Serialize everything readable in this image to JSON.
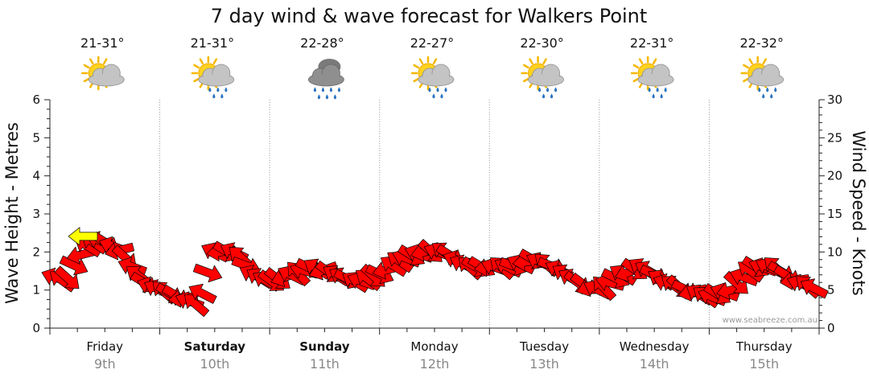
{
  "chart_data": {
    "type": "line",
    "title": "7 day wind & wave forecast for Walkers Point",
    "left_axis": {
      "label": "Wave Height - Metres",
      "ticks": [
        "0",
        "1",
        "2",
        "3",
        "4",
        "5",
        "6"
      ],
      "range": [
        0,
        6
      ]
    },
    "right_axis": {
      "label": "Wind Speed - Knots",
      "ticks": [
        "0",
        "5",
        "10",
        "15",
        "20",
        "25",
        "30"
      ],
      "range": [
        0,
        30
      ]
    },
    "days": [
      {
        "name": "Friday",
        "date": "9th",
        "temp": "21-31°",
        "icon": "partly-cloudy-icon",
        "bold": false
      },
      {
        "name": "Saturday",
        "date": "10th",
        "temp": "21-31°",
        "icon": "partly-cloudy-showers-icon",
        "bold": true
      },
      {
        "name": "Sunday",
        "date": "11th",
        "temp": "22-28°",
        "icon": "rain-icon",
        "bold": true
      },
      {
        "name": "Monday",
        "date": "12th",
        "temp": "22-27°",
        "icon": "partly-cloudy-showers-icon",
        "bold": false
      },
      {
        "name": "Tuesday",
        "date": "13th",
        "temp": "22-30°",
        "icon": "partly-cloudy-showers-icon",
        "bold": false
      },
      {
        "name": "Wednesday",
        "date": "14th",
        "temp": "22-31°",
        "icon": "partly-cloudy-showers-icon",
        "bold": false
      },
      {
        "name": "Thursday",
        "date": "15th",
        "temp": "22-32°",
        "icon": "partly-cloudy-showers-icon",
        "bold": false
      }
    ],
    "series": [
      {
        "name": "Wind Speed",
        "unit": "knots",
        "color": "#ff0000",
        "highlight_color": "#ffff00",
        "x_days": [
          0.0,
          0.15,
          0.25,
          0.35,
          0.45,
          0.55,
          0.65,
          0.75,
          0.85,
          1.0,
          1.2,
          1.35,
          1.5,
          1.7,
          1.85,
          2.0,
          2.2,
          2.4,
          2.6,
          2.8,
          3.0,
          3.2,
          3.4,
          3.6,
          3.8,
          4.0,
          4.2,
          4.4,
          4.6,
          4.8,
          5.0,
          5.2,
          5.4,
          5.6,
          5.8,
          6.0,
          6.2,
          6.4,
          6.6,
          6.8,
          7.0
        ],
        "knots": [
          7,
          6,
          9,
          11,
          11.5,
          11,
          10,
          8,
          6,
          5,
          4,
          3,
          10,
          10,
          7,
          6,
          7,
          8,
          7,
          6,
          7,
          9,
          10,
          10,
          8,
          8,
          8,
          9,
          8,
          6,
          5,
          7,
          8,
          6,
          5,
          4,
          5,
          8,
          8,
          6,
          5
        ],
        "highlight_index": 3
      }
    ],
    "credit": "www.seabreeze.com.au",
    "colors": {
      "arrow": "#ff0000",
      "arrow_highlight": "#ffff00",
      "grid": "#9a9a9a"
    }
  }
}
